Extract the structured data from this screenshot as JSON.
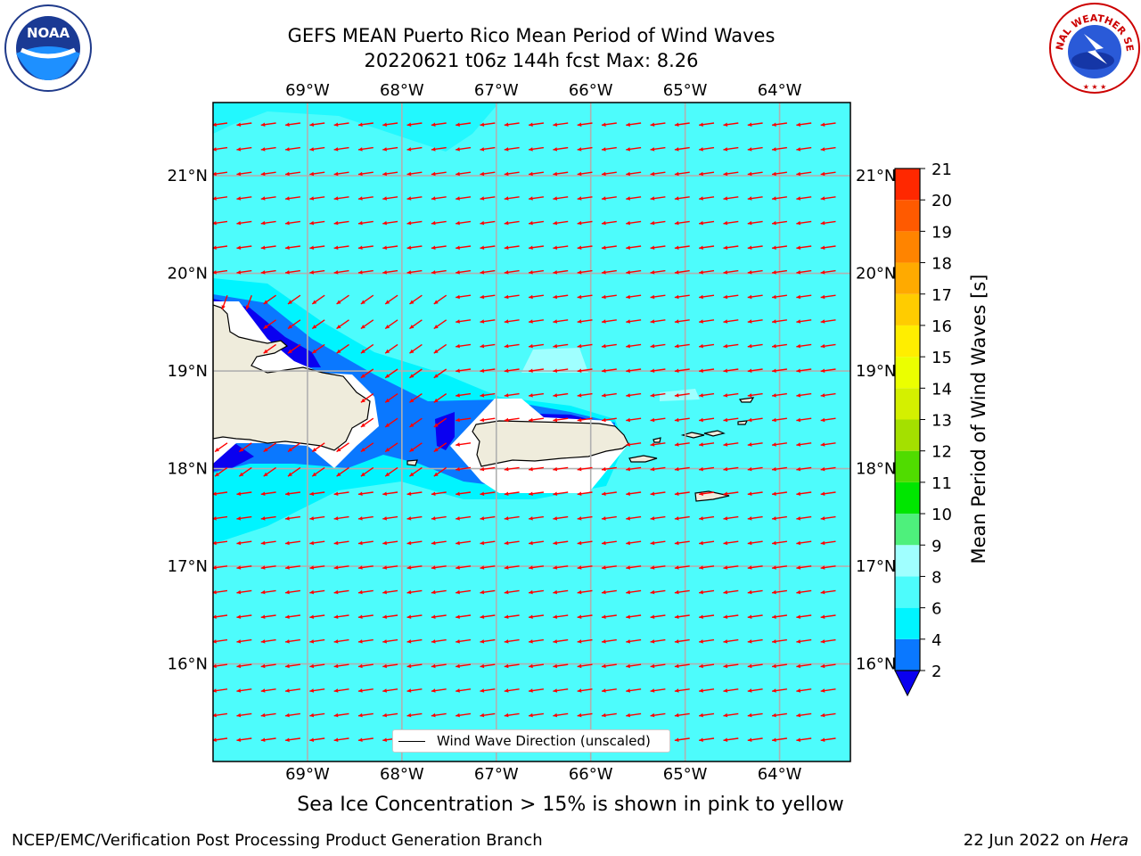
{
  "header": {
    "title_line1": "GEFS MEAN Puerto Rico Mean Period of Wind Waves",
    "title_line2": "20220621 t06z 144h fcst   Max: 8.26"
  },
  "logos": {
    "left": "noaa-logo",
    "right": "national-weather-service-logo",
    "noaa_text": "NOAA",
    "nws_ring_text": "NATIONAL WEATHER SERVICE"
  },
  "map": {
    "lon_labels": [
      "69°W",
      "68°W",
      "67°W",
      "66°W",
      "65°W",
      "64°W"
    ],
    "lat_labels": [
      "16°N",
      "17°N",
      "18°N",
      "19°N",
      "20°N",
      "21°N"
    ],
    "lon_values": [
      -69,
      -68,
      -67,
      -66,
      -65,
      -64
    ],
    "lat_values": [
      16,
      17,
      18,
      19,
      20,
      21
    ],
    "extent": {
      "lon": [
        -70.0,
        -63.25
      ],
      "lat": [
        15.0,
        21.75
      ]
    },
    "field_max": 8.26,
    "arrow_color": "#ff0000",
    "land_color": "#efecdc",
    "ocean_dominant_color": "#4dfcfc"
  },
  "legend": {
    "label": "Wind Wave Direction (unscaled)"
  },
  "colorbar": {
    "title": "Mean Period of Wind Waves [s]",
    "ticks": [
      2,
      4,
      6,
      8,
      9,
      10,
      11,
      12,
      13,
      14,
      15,
      16,
      17,
      18,
      19,
      20,
      21
    ],
    "colors": [
      "#0a00f0",
      "#0a78ff",
      "#00f4ff",
      "#4dfcfc",
      "#a0ffff",
      "#4ef07c",
      "#00e600",
      "#50dc00",
      "#a4e000",
      "#d4f000",
      "#ebff00",
      "#ffee00",
      "#ffcc00",
      "#ffaa00",
      "#ff8400",
      "#ff5a00",
      "#ff2800",
      "#ff0000"
    ]
  },
  "footer": {
    "note": "Sea Ice Concentration > 15% is shown in pink to yellow",
    "left": "NCEP/EMC/Verification Post Processing Product Generation Branch",
    "date": "22 Jun 2022 on ",
    "machine": "Hera"
  }
}
